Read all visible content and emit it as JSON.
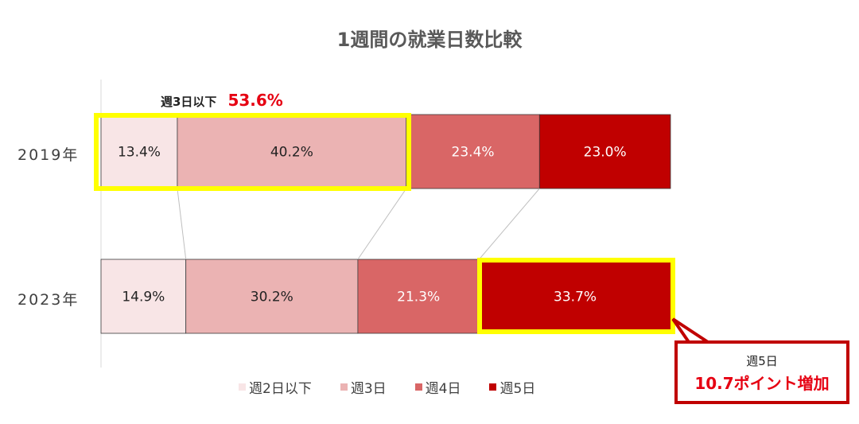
{
  "chart_data": {
    "type": "bar",
    "orientation": "horizontal",
    "stacked": "100%",
    "title": "1週間の就業日数比較",
    "categories": [
      "2019年",
      "2023年"
    ],
    "series": [
      {
        "name": "週2日以下",
        "values": [
          13.4,
          14.9
        ],
        "labels": [
          "13.4%",
          "14.9%"
        ],
        "color": "#f8e5e6"
      },
      {
        "name": "週3日",
        "values": [
          40.2,
          30.2
        ],
        "labels": [
          "40.2%",
          "30.2%"
        ],
        "color": "#ebb3b3"
      },
      {
        "name": "週4日",
        "values": [
          23.4,
          21.3
        ],
        "labels": [
          "23.4%",
          "21.3%"
        ],
        "color": "#d96666"
      },
      {
        "name": "週5日",
        "values": [
          23.0,
          33.7
        ],
        "labels": [
          "23.0%",
          "33.7%"
        ],
        "color": "#c00000"
      }
    ],
    "legend_position": "bottom",
    "grid": false,
    "series_lines": true
  },
  "annotations": {
    "note_label": "週3日以下",
    "note_value": "53.6%",
    "callout_line1": "週5日",
    "callout_line2": "10.7ポイント増加",
    "highlight_color": "#ffff00",
    "accent_color": "#e60012"
  }
}
